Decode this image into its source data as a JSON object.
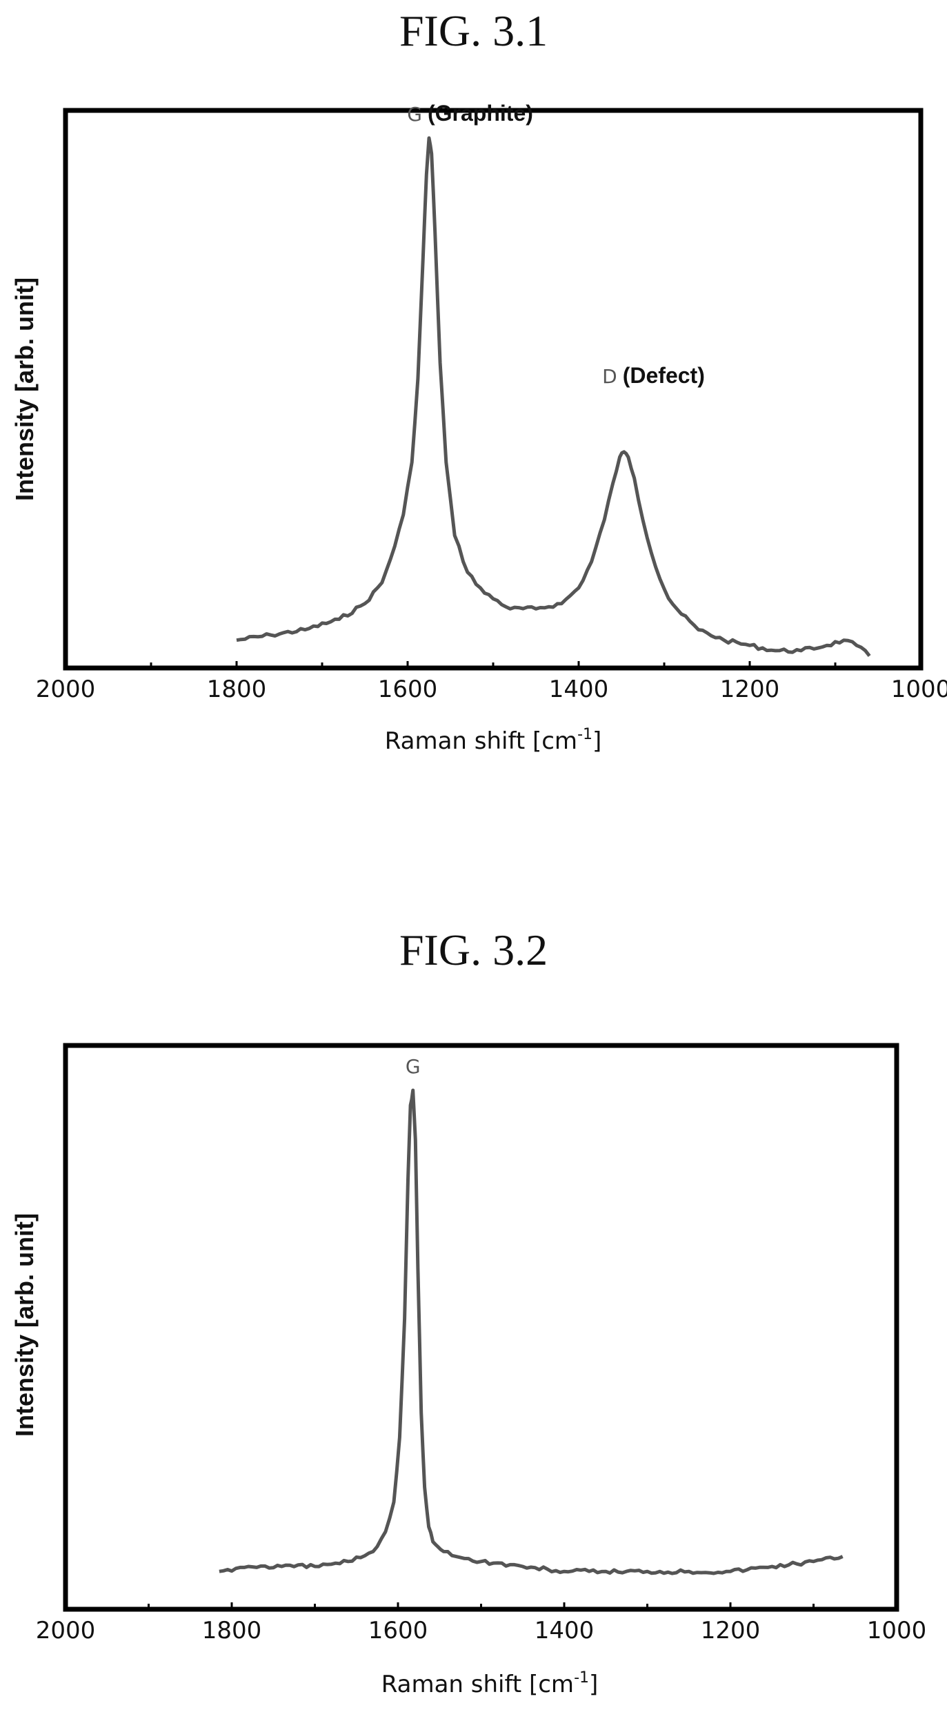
{
  "figures": [
    {
      "title": "FIG. 3.1"
    },
    {
      "title": "FIG. 3.2"
    }
  ],
  "chart_data": [
    {
      "type": "line",
      "title": "FIG. 3.1",
      "xlabel": "Raman shift [cm",
      "xlabel_sup": "-1",
      "xlabel_end": "]",
      "ylabel": "Intensity [arb. unit]",
      "xlim": [
        2000,
        1000
      ],
      "x_reversed": true,
      "x_ticks": [
        "2000",
        "1800",
        "1600",
        "1400",
        "1200",
        "1000"
      ],
      "x_tick_values": [
        2000,
        1800,
        1600,
        1400,
        1200,
        1000
      ],
      "minor_ticks": [
        1900,
        1700,
        1500,
        1300,
        1100
      ],
      "y_ticks_shown": false,
      "grid": false,
      "annotations": [
        {
          "letter": "G",
          "name": "(Graphite)",
          "x": 1575
        },
        {
          "letter": "D",
          "name": "(Defect)",
          "x": 1347
        }
      ],
      "series": [
        {
          "x": [
            1800,
            1760,
            1720,
            1680,
            1650,
            1630,
            1615,
            1605,
            1595,
            1588,
            1582,
            1578,
            1575,
            1572,
            1568,
            1562,
            1555,
            1545,
            1530,
            1510,
            1480,
            1450,
            1420,
            1400,
            1385,
            1370,
            1360,
            1352,
            1347,
            1342,
            1335,
            1325,
            1310,
            1295,
            1280,
            1260,
            1230,
            1200,
            1170,
            1140,
            1110,
            1090,
            1075,
            1060
          ],
          "y": [
            0.02,
            0.03,
            0.04,
            0.06,
            0.09,
            0.13,
            0.2,
            0.26,
            0.36,
            0.52,
            0.75,
            0.91,
            0.98,
            0.95,
            0.8,
            0.55,
            0.36,
            0.22,
            0.15,
            0.11,
            0.08,
            0.08,
            0.09,
            0.12,
            0.17,
            0.25,
            0.32,
            0.37,
            0.38,
            0.37,
            0.33,
            0.25,
            0.16,
            0.1,
            0.07,
            0.04,
            0.02,
            0.01,
            0.0,
            0.0,
            0.01,
            0.02,
            0.01,
            -0.01
          ]
        }
      ]
    },
    {
      "type": "line",
      "title": "FIG. 3.2",
      "xlabel": "Raman shift [cm",
      "xlabel_sup": "-1",
      "xlabel_end": "]",
      "ylabel": "Intensity [arb. unit]",
      "xlim": [
        2000,
        1000
      ],
      "x_reversed": true,
      "x_ticks": [
        "2000",
        "1800",
        "1600",
        "1400",
        "1200",
        "1000"
      ],
      "x_tick_values": [
        2000,
        1800,
        1600,
        1400,
        1200,
        1000
      ],
      "minor_ticks": [
        1900,
        1700,
        1500,
        1300,
        1100
      ],
      "y_ticks_shown": false,
      "grid": false,
      "annotations": [
        {
          "letter": "G",
          "name": "",
          "x": 1582
        }
      ],
      "series": [
        {
          "x": [
            1815,
            1780,
            1740,
            1700,
            1660,
            1630,
            1615,
            1605,
            1598,
            1592,
            1588,
            1585,
            1582,
            1579,
            1576,
            1572,
            1568,
            1563,
            1558,
            1552,
            1545,
            1530,
            1500,
            1450,
            1400,
            1350,
            1300,
            1250,
            1200,
            1150,
            1100,
            1065
          ],
          "y": [
            0.01,
            0.02,
            0.02,
            0.02,
            0.03,
            0.05,
            0.09,
            0.15,
            0.28,
            0.52,
            0.8,
            0.95,
            0.98,
            0.88,
            0.62,
            0.33,
            0.18,
            0.1,
            0.07,
            0.06,
            0.05,
            0.04,
            0.03,
            0.02,
            0.01,
            0.01,
            0.01,
            0.01,
            0.01,
            0.02,
            0.03,
            0.04
          ]
        }
      ]
    }
  ]
}
